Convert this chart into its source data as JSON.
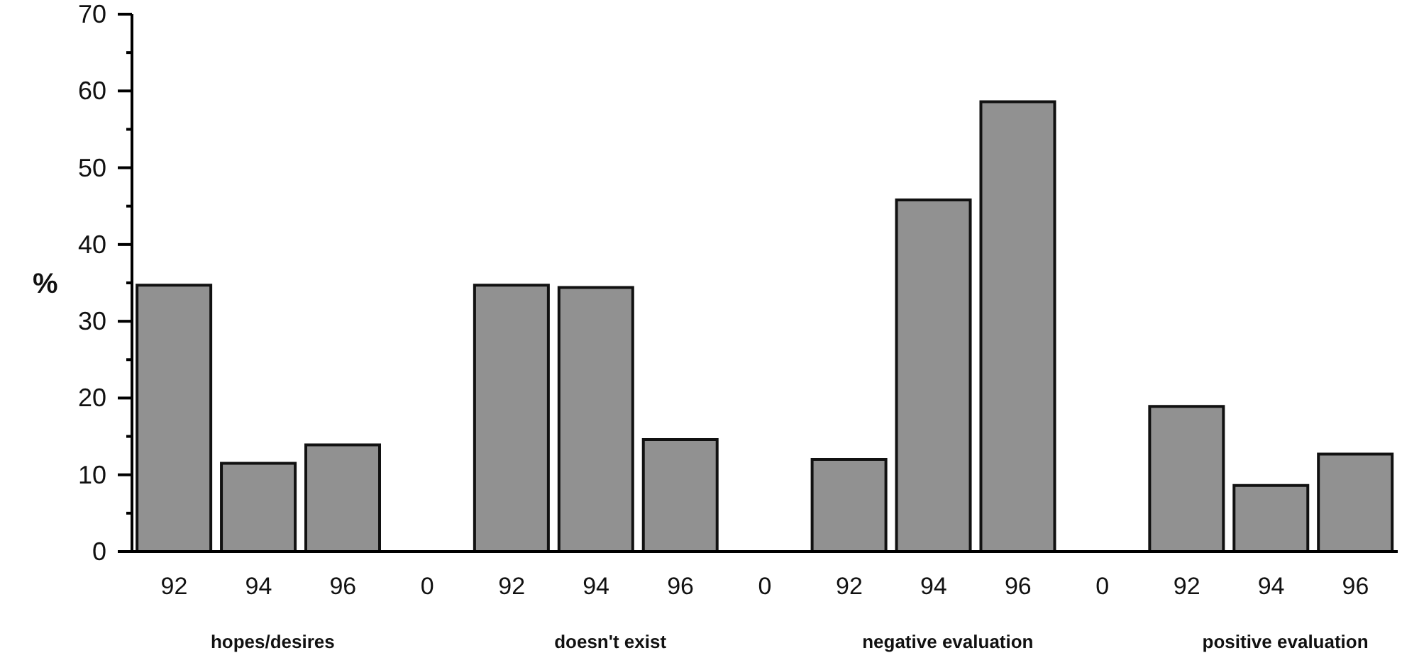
{
  "chart_data": {
    "type": "bar",
    "ylabel": "%",
    "categories": [
      "92",
      "94",
      "96",
      "0",
      "92",
      "94",
      "96",
      "0",
      "92",
      "94",
      "96",
      "0",
      "92",
      "94",
      "96"
    ],
    "values": [
      34.7,
      11.5,
      13.9,
      0,
      34.7,
      34.4,
      14.6,
      0,
      12.0,
      45.8,
      58.6,
      0,
      18.9,
      8.6,
      12.7
    ],
    "color": "#919191",
    "ylim": [
      0,
      70
    ],
    "yticks": [
      0,
      {
        "value": 5,
        "label": null
      },
      10,
      {
        "value": 15,
        "label": null
      },
      20,
      {
        "value": 25,
        "label": null
      },
      30,
      {
        "value": 35,
        "label": null
      },
      40,
      {
        "value": 45,
        "label": null
      },
      50,
      {
        "value": 55,
        "label": null
      },
      60,
      {
        "value": 65,
        "label": null
      },
      70
    ],
    "annotations": [
      "hopes/desires",
      "doesn't exist",
      "negative evaluation",
      "positive evaluation"
    ],
    "grid": false,
    "legend": false
  }
}
